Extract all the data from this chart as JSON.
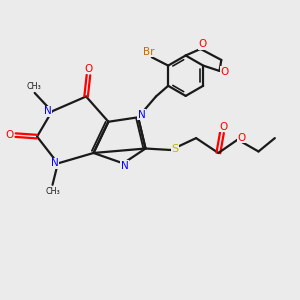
{
  "bg_color": "#ebebeb",
  "bond_color": "#1a1a1a",
  "nitrogen_color": "#0000ff",
  "oxygen_color": "#ff0000",
  "sulfur_color": "#bbbb00",
  "bromine_color": "#cc6600",
  "figsize": [
    3.0,
    3.0
  ],
  "dpi": 100,
  "xlim": [
    0,
    10
  ],
  "ylim": [
    0,
    10
  ]
}
